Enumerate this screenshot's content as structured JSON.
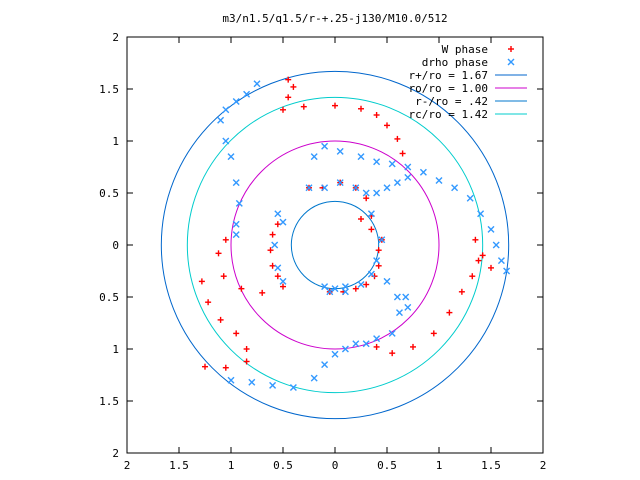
{
  "chart_data": {
    "type": "scatter",
    "title": "m3/n1.5/q1.5/r-+.25-j130/M10.0/512",
    "xlim": [
      -2,
      2
    ],
    "ylim": [
      -2,
      2
    ],
    "x_ticks": [
      -2,
      -1.5,
      -1,
      -0.5,
      0,
      0.5,
      1,
      1.5,
      2
    ],
    "y_ticks": [
      -2,
      -1.5,
      -1,
      -0.5,
      0,
      0.5,
      1,
      1.5,
      2
    ],
    "x_tick_labels": [
      "2",
      "1.5",
      "1",
      "0.5",
      "0",
      "0.5",
      "1",
      "1.5",
      "2"
    ],
    "y_tick_labels": [
      "2",
      "1.5",
      "1",
      "0.5",
      "0",
      "0.5",
      "1",
      "1.5",
      "2"
    ],
    "grid": false,
    "legend_placement": "top-right",
    "series": [
      {
        "name": "W phase",
        "kind": "points",
        "marker": "+",
        "color": "#ff0000",
        "points": [
          [
            -0.45,
            1.59
          ],
          [
            -0.4,
            1.52
          ],
          [
            -0.45,
            1.42
          ],
          [
            -0.5,
            1.3
          ],
          [
            -0.3,
            1.33
          ],
          [
            0,
            1.34
          ],
          [
            0.25,
            1.31
          ],
          [
            0.4,
            1.25
          ],
          [
            0.5,
            1.15
          ],
          [
            0.6,
            1.02
          ],
          [
            0.65,
            0.88
          ],
          [
            -1.05,
            0.05
          ],
          [
            -1.12,
            -0.08
          ],
          [
            -1.07,
            -0.3
          ],
          [
            -0.9,
            -0.42
          ],
          [
            -0.7,
            -0.46
          ],
          [
            -1.28,
            -0.35
          ],
          [
            -1.22,
            -0.55
          ],
          [
            -1.1,
            -0.72
          ],
          [
            -0.95,
            -0.85
          ],
          [
            -0.85,
            -1.0
          ],
          [
            -0.85,
            -1.12
          ],
          [
            -1.05,
            -1.18
          ],
          [
            -1.25,
            -1.17
          ],
          [
            0.4,
            -0.98
          ],
          [
            0.55,
            -1.04
          ],
          [
            0.75,
            -0.98
          ],
          [
            0.95,
            -0.85
          ],
          [
            1.1,
            -0.65
          ],
          [
            1.22,
            -0.45
          ],
          [
            1.32,
            -0.3
          ],
          [
            1.38,
            -0.15
          ],
          [
            1.35,
            0.05
          ],
          [
            1.42,
            -0.1
          ],
          [
            1.5,
            -0.22
          ],
          [
            -0.25,
            0.55
          ],
          [
            -0.12,
            0.55
          ],
          [
            0.05,
            0.6
          ],
          [
            0.2,
            0.55
          ],
          [
            0.3,
            0.45
          ],
          [
            0.35,
            0.28
          ],
          [
            -0.55,
            0.2
          ],
          [
            -0.6,
            0.1
          ],
          [
            -0.62,
            -0.05
          ],
          [
            -0.6,
            -0.2
          ],
          [
            -0.55,
            -0.3
          ],
          [
            -0.5,
            -0.4
          ],
          [
            0.45,
            0.05
          ],
          [
            0.42,
            -0.05
          ],
          [
            0.42,
            -0.2
          ],
          [
            0.38,
            -0.3
          ],
          [
            0.3,
            -0.38
          ],
          [
            0.2,
            -0.42
          ],
          [
            0.08,
            -0.45
          ],
          [
            -0.05,
            -0.45
          ],
          [
            0.25,
            0.25
          ],
          [
            0.35,
            0.15
          ]
        ]
      },
      {
        "name": "drho phase",
        "kind": "points",
        "marker": "x",
        "color": "#3399ff",
        "points": [
          [
            -0.75,
            1.55
          ],
          [
            -0.85,
            1.45
          ],
          [
            -0.95,
            1.38
          ],
          [
            -1.05,
            1.3
          ],
          [
            -1.1,
            1.2
          ],
          [
            -1.05,
            1.0
          ],
          [
            -1.0,
            0.85
          ],
          [
            -0.95,
            0.6
          ],
          [
            -0.92,
            0.4
          ],
          [
            -0.95,
            0.2
          ],
          [
            -0.95,
            0.1
          ],
          [
            -0.2,
            0.85
          ],
          [
            -0.1,
            0.95
          ],
          [
            0.05,
            0.9
          ],
          [
            0.25,
            0.85
          ],
          [
            0.4,
            0.8
          ],
          [
            0.55,
            0.78
          ],
          [
            0.7,
            0.75
          ],
          [
            0.85,
            0.7
          ],
          [
            1.0,
            0.62
          ],
          [
            1.15,
            0.55
          ],
          [
            1.3,
            0.45
          ],
          [
            1.4,
            0.3
          ],
          [
            1.5,
            0.15
          ],
          [
            1.55,
            0.0
          ],
          [
            1.6,
            -0.15
          ],
          [
            1.65,
            -0.25
          ],
          [
            0.4,
            0.5
          ],
          [
            0.5,
            0.55
          ],
          [
            0.6,
            0.6
          ],
          [
            0.7,
            0.65
          ],
          [
            -1.0,
            -1.3
          ],
          [
            -0.8,
            -1.32
          ],
          [
            -0.6,
            -1.35
          ],
          [
            -0.4,
            -1.37
          ],
          [
            -0.2,
            -1.28
          ],
          [
            -0.1,
            -1.15
          ],
          [
            0.0,
            -1.05
          ],
          [
            0.1,
            -1.0
          ],
          [
            0.2,
            -0.95
          ],
          [
            0.3,
            -0.95
          ],
          [
            0.4,
            -0.9
          ],
          [
            0.55,
            -0.85
          ],
          [
            0.62,
            -0.65
          ],
          [
            0.5,
            -0.35
          ],
          [
            0.6,
            -0.5
          ],
          [
            0.68,
            -0.5
          ],
          [
            0.7,
            -0.6
          ],
          [
            -0.55,
            0.3
          ],
          [
            -0.5,
            0.22
          ],
          [
            -0.58,
            0.0
          ],
          [
            -0.55,
            -0.22
          ],
          [
            -0.5,
            -0.35
          ],
          [
            -0.25,
            0.55
          ],
          [
            -0.1,
            0.55
          ],
          [
            0.05,
            0.6
          ],
          [
            0.2,
            0.55
          ],
          [
            0.3,
            0.5
          ],
          [
            0.35,
            0.3
          ],
          [
            0.45,
            0.05
          ],
          [
            0.4,
            -0.15
          ],
          [
            0.35,
            -0.28
          ],
          [
            0.25,
            -0.38
          ],
          [
            0.1,
            -0.45
          ],
          [
            -0.05,
            -0.45
          ],
          [
            -0.1,
            -0.4
          ],
          [
            0.0,
            -0.42
          ],
          [
            0.1,
            -0.4
          ]
        ]
      },
      {
        "name": "r+/ro = 1.67",
        "kind": "circle",
        "radius": 1.67,
        "color": "#0066cc"
      },
      {
        "name": "ro/ro = 1.00",
        "kind": "circle",
        "radius": 1.0,
        "color": "#cc00cc"
      },
      {
        "name": "r-/ro = .42",
        "kind": "circle",
        "radius": 0.42,
        "color": "#0077cc"
      },
      {
        "name": "rc/ro = 1.42",
        "kind": "circle",
        "radius": 1.42,
        "color": "#00cccc"
      }
    ]
  }
}
